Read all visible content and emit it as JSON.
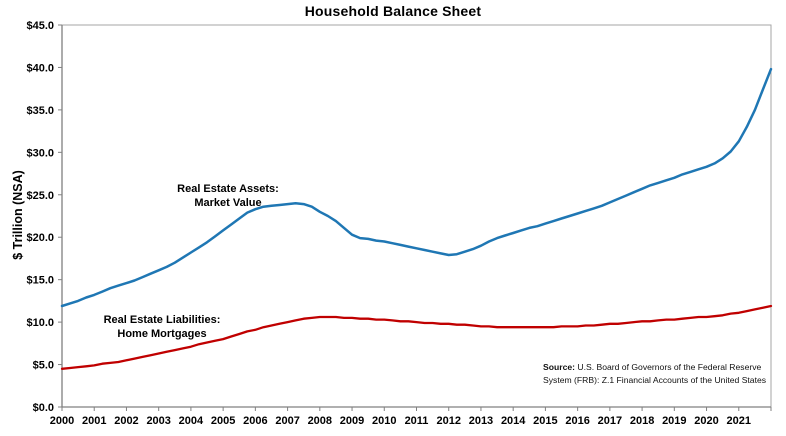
{
  "chart_data": {
    "type": "line",
    "title": "Household Balance Sheet",
    "ylabel": "$ Trillion (NSA)",
    "ylim": [
      0,
      45
    ],
    "y_tick_step": 5,
    "y_tick_labels": [
      "$45.0",
      "$40.0",
      "$35.0",
      "$30.0",
      "$25.0",
      "$20.0",
      "$15.0",
      "$10.0",
      "$5.0",
      "$0.0"
    ],
    "x_labels": [
      "2000",
      "2001",
      "2002",
      "2003",
      "2004",
      "2005",
      "2006",
      "2007",
      "2008",
      "2009",
      "2010",
      "2011",
      "2012",
      "2013",
      "2014",
      "2015",
      "2016",
      "2017",
      "2018",
      "2019",
      "2020",
      "2021"
    ],
    "frequency": "quarterly",
    "x_range_note": "2000Q1 through 2022Q1",
    "grid": "off",
    "legend": "none (direct line labels)",
    "series": [
      {
        "name": "Real Estate Assets: Market Value",
        "color": "#1F77B4",
        "values": [
          11.9,
          12.2,
          12.5,
          12.9,
          13.2,
          13.6,
          14.0,
          14.3,
          14.6,
          14.9,
          15.3,
          15.7,
          16.1,
          16.5,
          17.0,
          17.6,
          18.2,
          18.8,
          19.4,
          20.1,
          20.8,
          21.5,
          22.2,
          22.9,
          23.3,
          23.6,
          23.7,
          23.8,
          23.9,
          24.0,
          23.9,
          23.6,
          23.0,
          22.5,
          21.9,
          21.1,
          20.3,
          19.9,
          19.8,
          19.6,
          19.5,
          19.3,
          19.1,
          18.9,
          18.7,
          18.5,
          18.3,
          18.1,
          17.9,
          18.0,
          18.3,
          18.6,
          19.0,
          19.5,
          19.9,
          20.2,
          20.5,
          20.8,
          21.1,
          21.3,
          21.6,
          21.9,
          22.2,
          22.5,
          22.8,
          23.1,
          23.4,
          23.7,
          24.1,
          24.5,
          24.9,
          25.3,
          25.7,
          26.1,
          26.4,
          26.7,
          27.0,
          27.4,
          27.7,
          28.0,
          28.3,
          28.7,
          29.3,
          30.1,
          31.3,
          33.0,
          35.0,
          37.4,
          39.8
        ]
      },
      {
        "name": "Real Estate Liabilities: Home Mortgages",
        "color": "#C00000",
        "values": [
          4.5,
          4.6,
          4.7,
          4.8,
          4.9,
          5.1,
          5.2,
          5.3,
          5.5,
          5.7,
          5.9,
          6.1,
          6.3,
          6.5,
          6.7,
          6.9,
          7.1,
          7.4,
          7.6,
          7.8,
          8.0,
          8.3,
          8.6,
          8.9,
          9.1,
          9.4,
          9.6,
          9.8,
          10.0,
          10.2,
          10.4,
          10.5,
          10.6,
          10.6,
          10.6,
          10.5,
          10.5,
          10.4,
          10.4,
          10.3,
          10.3,
          10.2,
          10.1,
          10.1,
          10.0,
          9.9,
          9.9,
          9.8,
          9.8,
          9.7,
          9.7,
          9.6,
          9.5,
          9.5,
          9.4,
          9.4,
          9.4,
          9.4,
          9.4,
          9.4,
          9.4,
          9.4,
          9.5,
          9.5,
          9.5,
          9.6,
          9.6,
          9.7,
          9.8,
          9.8,
          9.9,
          10.0,
          10.1,
          10.1,
          10.2,
          10.3,
          10.3,
          10.4,
          10.5,
          10.6,
          10.6,
          10.7,
          10.8,
          11.0,
          11.1,
          11.3,
          11.5,
          11.7,
          11.9
        ]
      }
    ]
  },
  "annotations": {
    "assets": {
      "line1": "Real Estate Assets:",
      "line2": "Market Value"
    },
    "liabilities": {
      "line1": "Real Estate Liabilities:",
      "line2": "Home Mortgages"
    }
  },
  "source": {
    "label": "Source:",
    "line1": "U.S. Board of Governors of the Federal Reserve",
    "line2": "System (FRB): Z.1 Financial Accounts of the United States"
  },
  "colors": {
    "assets_line": "#1F77B4",
    "liabilities_line": "#C00000",
    "axis": "#808080",
    "plot_border": "#A6A6A6",
    "text": "#000000",
    "background": "#FFFFFF"
  }
}
